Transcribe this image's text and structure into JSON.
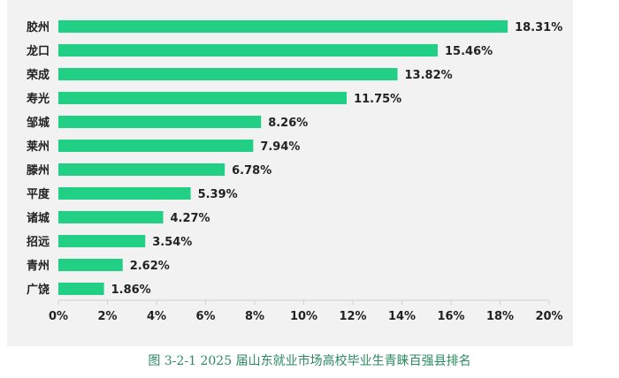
{
  "caption": "图 3-2-1  2025 届山东就业市场高校毕业生青睐百强县排名",
  "chart_data": {
    "type": "bar",
    "orientation": "horizontal",
    "categories": [
      "胶州",
      "龙口",
      "荣成",
      "寿光",
      "邹城",
      "莱州",
      "滕州",
      "平度",
      "诸城",
      "招远",
      "青州",
      "广饶"
    ],
    "values": [
      18.31,
      15.46,
      13.82,
      11.75,
      8.26,
      7.94,
      6.78,
      5.39,
      4.27,
      3.54,
      2.62,
      1.86
    ],
    "value_labels": [
      "18.31%",
      "15.46%",
      "13.82%",
      "11.75%",
      "8.26%",
      "7.94%",
      "6.78%",
      "5.39%",
      "4.27%",
      "3.54%",
      "2.62%",
      "1.86%"
    ],
    "xlim": [
      0,
      20
    ],
    "xticks": [
      0,
      2,
      4,
      6,
      8,
      10,
      12,
      14,
      16,
      18,
      20
    ],
    "xtick_labels": [
      "0%",
      "2%",
      "4%",
      "6%",
      "8%",
      "10%",
      "12%",
      "14%",
      "16%",
      "18%",
      "20%"
    ],
    "grid": false,
    "bar_color": "#21cf85",
    "title": "",
    "xlabel": "",
    "ylabel": ""
  }
}
